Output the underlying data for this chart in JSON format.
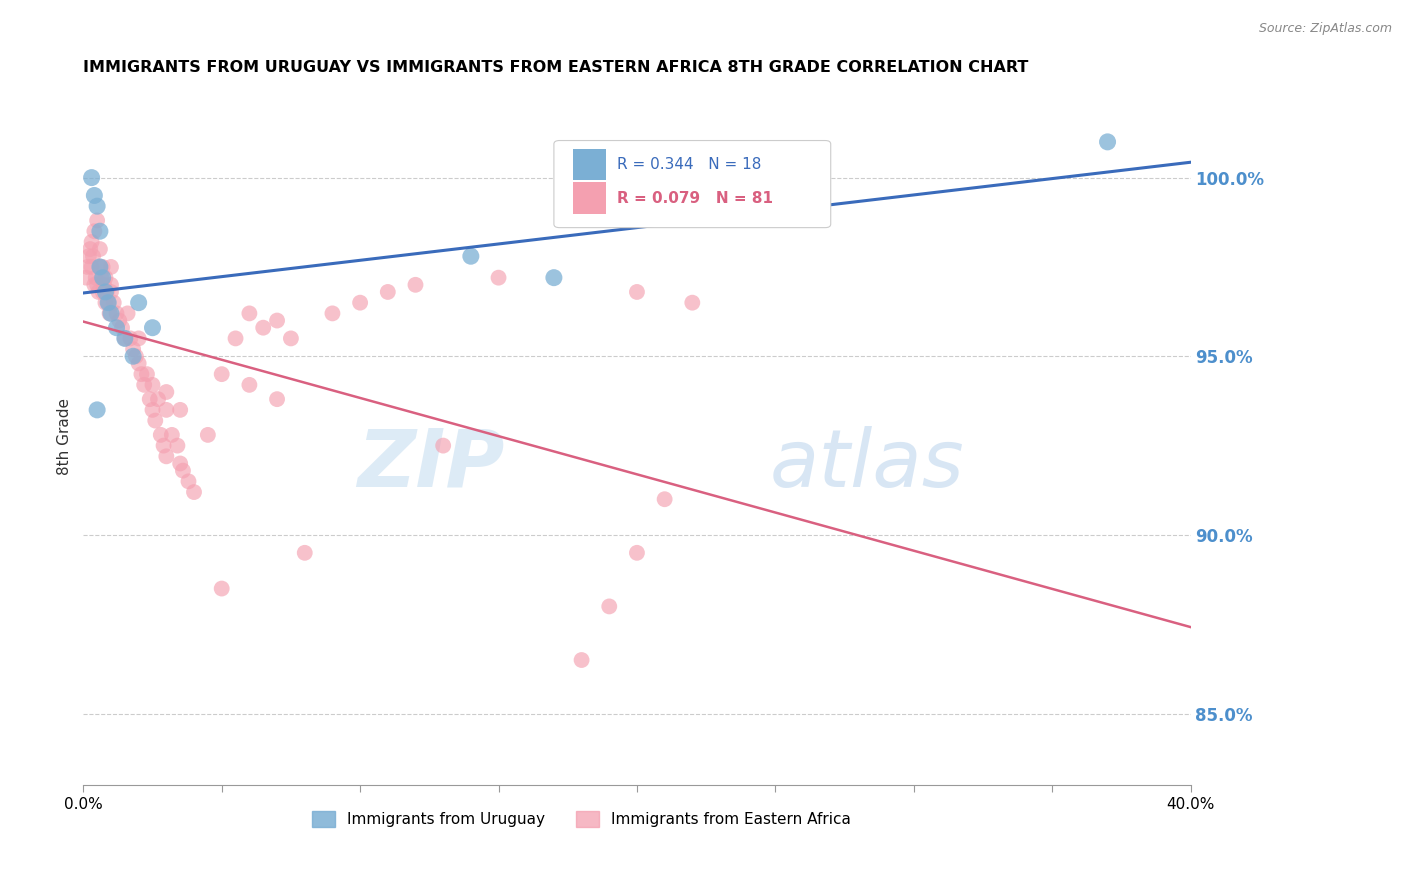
{
  "title": "IMMIGRANTS FROM URUGUAY VS IMMIGRANTS FROM EASTERN AFRICA 8TH GRADE CORRELATION CHART",
  "source": "Source: ZipAtlas.com",
  "ylabel": "8th Grade",
  "right_yticks": [
    85.0,
    90.0,
    95.0,
    100.0
  ],
  "xlim": [
    0.0,
    40.0
  ],
  "ylim": [
    83.0,
    102.5
  ],
  "legend_blue_r": "R = 0.344",
  "legend_blue_n": "N = 18",
  "legend_pink_r": "R = 0.079",
  "legend_pink_n": "N = 81",
  "watermark_zip": "ZIP",
  "watermark_atlas": "atlas",
  "blue_color": "#7BAFD4",
  "pink_color": "#F4A0B0",
  "blue_line_color": "#3A6BBB",
  "pink_line_color": "#D96080",
  "right_axis_color": "#4D8FCC",
  "blue_scatter_x": [
    0.3,
    0.4,
    0.5,
    0.6,
    0.6,
    0.7,
    0.8,
    0.9,
    1.0,
    1.2,
    1.5,
    1.8,
    2.0,
    2.5,
    14.0,
    17.0,
    37.0,
    0.5
  ],
  "blue_scatter_y": [
    100.0,
    99.5,
    99.2,
    98.5,
    97.5,
    97.2,
    96.8,
    96.5,
    96.2,
    95.8,
    95.5,
    95.0,
    96.5,
    95.8,
    97.8,
    97.2,
    101.0,
    93.5
  ],
  "pink_scatter_x": [
    0.1,
    0.15,
    0.2,
    0.25,
    0.3,
    0.3,
    0.35,
    0.4,
    0.4,
    0.45,
    0.5,
    0.5,
    0.55,
    0.6,
    0.6,
    0.65,
    0.7,
    0.7,
    0.75,
    0.8,
    0.8,
    0.85,
    0.9,
    0.95,
    1.0,
    1.0,
    1.0,
    1.1,
    1.2,
    1.3,
    1.4,
    1.5,
    1.6,
    1.7,
    1.8,
    1.9,
    2.0,
    2.0,
    2.1,
    2.2,
    2.3,
    2.4,
    2.5,
    2.5,
    2.6,
    2.7,
    2.8,
    2.9,
    3.0,
    3.0,
    3.0,
    3.2,
    3.4,
    3.5,
    3.5,
    3.6,
    3.8,
    4.0,
    4.5,
    5.0,
    5.5,
    6.0,
    6.5,
    7.0,
    7.5,
    8.0,
    9.0,
    10.0,
    11.0,
    12.0,
    15.0,
    20.0,
    22.0,
    5.0,
    6.0,
    7.0,
    18.0,
    19.0,
    20.0,
    21.0,
    13.0
  ],
  "pink_scatter_y": [
    97.2,
    97.5,
    97.8,
    98.0,
    97.5,
    98.2,
    97.8,
    97.0,
    98.5,
    97.2,
    97.0,
    98.8,
    96.8,
    97.5,
    98.0,
    97.2,
    96.8,
    97.5,
    97.0,
    96.5,
    97.2,
    96.8,
    96.5,
    96.2,
    96.8,
    97.0,
    97.5,
    96.5,
    96.2,
    96.0,
    95.8,
    95.5,
    96.2,
    95.5,
    95.2,
    95.0,
    95.5,
    94.8,
    94.5,
    94.2,
    94.5,
    93.8,
    94.2,
    93.5,
    93.2,
    93.8,
    92.8,
    92.5,
    93.5,
    94.0,
    92.2,
    92.8,
    92.5,
    93.5,
    92.0,
    91.8,
    91.5,
    91.2,
    92.8,
    88.5,
    95.5,
    96.2,
    95.8,
    96.0,
    95.5,
    89.5,
    96.2,
    96.5,
    96.8,
    97.0,
    97.2,
    96.8,
    96.5,
    94.5,
    94.2,
    93.8,
    86.5,
    88.0,
    89.5,
    91.0,
    92.5
  ]
}
